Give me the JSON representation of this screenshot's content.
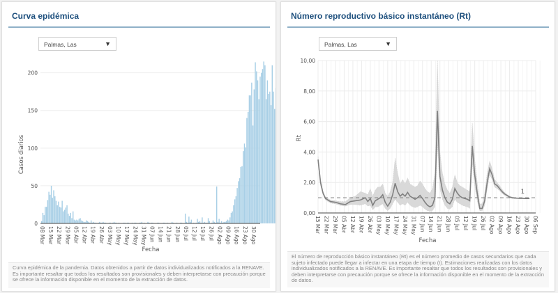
{
  "panels": {
    "epi": {
      "title": "Curva epidémica",
      "select_value": "Palmas, Las",
      "footer": "Curva epidémica de la pandemia. Datos obtenidos a partir de datos individualizados notificados a la RENAVE. Es importante resaltar que todos los resultados son provisionales y deben interpretarse con precaución porque se ofrece la información disponible en el momento de la extracción de datos."
    },
    "rt": {
      "title": "Número reproductivo básico instantáneo (Rt)",
      "select_value": "Palmas, Las",
      "footer": "El número de reproducción básico instantáneo (Rt) es el número promedio de casos secundarios que cada sujeto infectado puede llegar a infectar en una etapa de tiempo (t). Estimaciones realizadas con los datos individualizados notificados a la RENAVE. Es importante resaltar que todos los resultados son provisionales y deben interpretarse con precaución porque se ofrece la información disponible en el momento de la extracción de datos."
    }
  },
  "icons": {
    "dropdown": "▼"
  },
  "colors": {
    "bar": "#a8cfe6",
    "rt_line": "#808080",
    "rt_band": "#d9d9d9",
    "title": "#1d4f7d"
  },
  "chart_data": [
    {
      "type": "bar",
      "title": "Curva epidémica",
      "xlabel": "Fecha",
      "ylabel": "Casos diarios",
      "ylim": [
        0,
        220
      ],
      "yticks": [
        0,
        50,
        100,
        150,
        200
      ],
      "grid": true,
      "start_date": "08 Mar",
      "xtick_labels": [
        "08 Mar",
        "15 Mar",
        "22 Mar",
        "29 Mar",
        "05 Abr",
        "12 Abr",
        "19 Abr",
        "26 Abr",
        "03 May",
        "10 May",
        "17 May",
        "24 May",
        "31 May",
        "07 Jun",
        "14 Jun",
        "21 Jun",
        "28 Jun",
        "05 Jul",
        "12 Jul",
        "19 Jul",
        "26 Jul",
        "02 Ago",
        "09 Ago",
        "16 Ago",
        "23 Ago",
        "30 Ago"
      ],
      "values": [
        3,
        14,
        11,
        22,
        22,
        31,
        42,
        38,
        50,
        34,
        44,
        36,
        30,
        24,
        29,
        22,
        21,
        30,
        16,
        18,
        21,
        24,
        13,
        10,
        14,
        7,
        16,
        5,
        4,
        5,
        4,
        6,
        7,
        4,
        3,
        2,
        2,
        4,
        3,
        2,
        1,
        4,
        1,
        2,
        1,
        1,
        0,
        1,
        2,
        1,
        1,
        2,
        1,
        1,
        0,
        0,
        1,
        1,
        0,
        1,
        2,
        1,
        1,
        0,
        1,
        0,
        0,
        0,
        1,
        1,
        0,
        1,
        1,
        0,
        0,
        1,
        0,
        1,
        1,
        0,
        0,
        1,
        1,
        2,
        0,
        1,
        0,
        0,
        2,
        1,
        0,
        1,
        1,
        0,
        0,
        0,
        1,
        1,
        0,
        0,
        0,
        1,
        1,
        0,
        1,
        0,
        0,
        0,
        2,
        1,
        0,
        0,
        1,
        0,
        0,
        1,
        1,
        0,
        0,
        13,
        2,
        1,
        9,
        2,
        5,
        0,
        1,
        0,
        1,
        6,
        2,
        3,
        1,
        8,
        1,
        2,
        1,
        1,
        7,
        3,
        0,
        1,
        4,
        2,
        1,
        49,
        2,
        6,
        1,
        3,
        1,
        2,
        2,
        3,
        5,
        4,
        8,
        14,
        16,
        24,
        32,
        36,
        47,
        56,
        60,
        75,
        76,
        96,
        106,
        101,
        140,
        148,
        170,
        170,
        187,
        130,
        178,
        214,
        202,
        190,
        165,
        195,
        200,
        205,
        215,
        210,
        165,
        190,
        172,
        175,
        157,
        210,
        175,
        152,
        180
      ],
      "values_note": "approximate daily cases from 08 Mar to ~01 Sep"
    },
    {
      "type": "line",
      "title": "Número reproductivo básico instantáneo (Rt)",
      "xlabel": "Fecha",
      "ylabel": "Rt",
      "ylim": [
        0,
        10
      ],
      "yticks": [
        "0,00",
        "2,00",
        "4,00",
        "6,00",
        "8,00",
        "10,00"
      ],
      "ytick_values": [
        0,
        2,
        4,
        6,
        8,
        10
      ],
      "grid": true,
      "reference_line": {
        "value": 1,
        "label": "1",
        "style": "dashed"
      },
      "xtick_labels": [
        "15 Mar",
        "22 Mar",
        "29 Mar",
        "05 Abr",
        "12 Abr",
        "19 Abr",
        "26 Abr",
        "03 May",
        "10 May",
        "17 May",
        "24 May",
        "31 May",
        "07 Jun",
        "14 Jun",
        "21 Jun",
        "28 Jun",
        "05 Jul",
        "12 Jul",
        "19 Jul",
        "26 Jul",
        "02 Ago",
        "09 Ago",
        "16 Ago",
        "23 Ago",
        "30 Ago",
        "06 Sep"
      ],
      "series": [
        {
          "name": "Rt",
          "days_from_15_mar": [
            0,
            2,
            4,
            6,
            8,
            10,
            14,
            18,
            22,
            26,
            30,
            34,
            38,
            40,
            42,
            44,
            46,
            48,
            50,
            52,
            54,
            56,
            58,
            60,
            62,
            64,
            66,
            68,
            70,
            72,
            74,
            76,
            78,
            80,
            82,
            84,
            86,
            88,
            90,
            92,
            94,
            96,
            98,
            100,
            102,
            104,
            106,
            108,
            110,
            112,
            114,
            116,
            118,
            120,
            122,
            124,
            126,
            128,
            130,
            132,
            134,
            136,
            138,
            140,
            142,
            144,
            146,
            148,
            150,
            152,
            154,
            156,
            158,
            160,
            162,
            164,
            166,
            168,
            170
          ],
          "values": [
            3.5,
            2.0,
            1.3,
            0.95,
            0.85,
            0.75,
            0.7,
            0.6,
            0.55,
            0.75,
            0.8,
            0.85,
            1.0,
            0.75,
            0.95,
            0.5,
            0.8,
            0.9,
            1.0,
            1.2,
            0.7,
            0.45,
            0.7,
            1.2,
            1.95,
            1.4,
            1.1,
            1.25,
            1.1,
            1.35,
            1.1,
            1.0,
            0.9,
            1.0,
            1.15,
            0.95,
            0.7,
            0.5,
            0.4,
            0.5,
            1.0,
            6.7,
            2.4,
            1.5,
            1.0,
            0.7,
            0.6,
            0.9,
            1.6,
            1.3,
            1.1,
            1.0,
            0.95,
            0.9,
            0.8,
            4.4,
            2.5,
            1.3,
            0.3,
            0.3,
            0.8,
            2.0,
            2.9,
            2.5,
            1.9,
            1.8,
            1.6,
            1.4,
            1.25,
            1.15,
            1.05,
            1.0,
            0.98,
            0.97,
            0.96,
            0.96,
            0.95,
            0.95,
            0.95
          ]
        },
        {
          "name": "CI upper",
          "values": [
            3.7,
            2.2,
            1.4,
            1.05,
            0.95,
            0.85,
            0.8,
            0.75,
            0.75,
            1.0,
            1.1,
            1.4,
            1.3,
            1.2,
            1.6,
            1.1,
            1.5,
            1.7,
            1.7,
            1.9,
            1.3,
            1.1,
            1.4,
            2.0,
            3.6,
            2.6,
            1.9,
            2.2,
            1.9,
            2.3,
            1.9,
            1.8,
            1.7,
            1.8,
            2.1,
            1.9,
            1.6,
            1.4,
            1.3,
            1.6,
            2.6,
            10.0,
            4.0,
            2.6,
            1.9,
            1.5,
            1.3,
            1.7,
            2.5,
            2.0,
            1.8,
            1.7,
            1.6,
            1.5,
            1.4,
            5.9,
            3.5,
            2.0,
            0.6,
            0.6,
            1.3,
            2.6,
            3.4,
            2.9,
            2.2,
            2.0,
            1.8,
            1.55,
            1.35,
            1.22,
            1.1,
            1.05,
            1.02,
            1.0,
            0.99,
            0.99,
            0.98,
            0.98,
            0.98
          ]
        },
        {
          "name": "CI lower",
          "values": [
            3.3,
            1.8,
            1.2,
            0.85,
            0.75,
            0.65,
            0.6,
            0.5,
            0.45,
            0.55,
            0.55,
            0.5,
            0.6,
            0.45,
            0.5,
            0.2,
            0.4,
            0.4,
            0.5,
            0.6,
            0.3,
            0.15,
            0.3,
            0.6,
            0.9,
            0.7,
            0.5,
            0.6,
            0.5,
            0.7,
            0.5,
            0.4,
            0.35,
            0.4,
            0.5,
            0.4,
            0.25,
            0.15,
            0.1,
            0.15,
            0.4,
            4.5,
            1.6,
            0.9,
            0.5,
            0.3,
            0.25,
            0.4,
            0.9,
            0.7,
            0.6,
            0.5,
            0.45,
            0.4,
            0.3,
            3.3,
            1.8,
            0.8,
            0.15,
            0.15,
            0.5,
            1.6,
            2.5,
            2.2,
            1.7,
            1.6,
            1.45,
            1.28,
            1.16,
            1.08,
            1.0,
            0.95,
            0.94,
            0.94,
            0.93,
            0.93,
            0.92,
            0.92,
            0.92
          ]
        }
      ]
    }
  ]
}
